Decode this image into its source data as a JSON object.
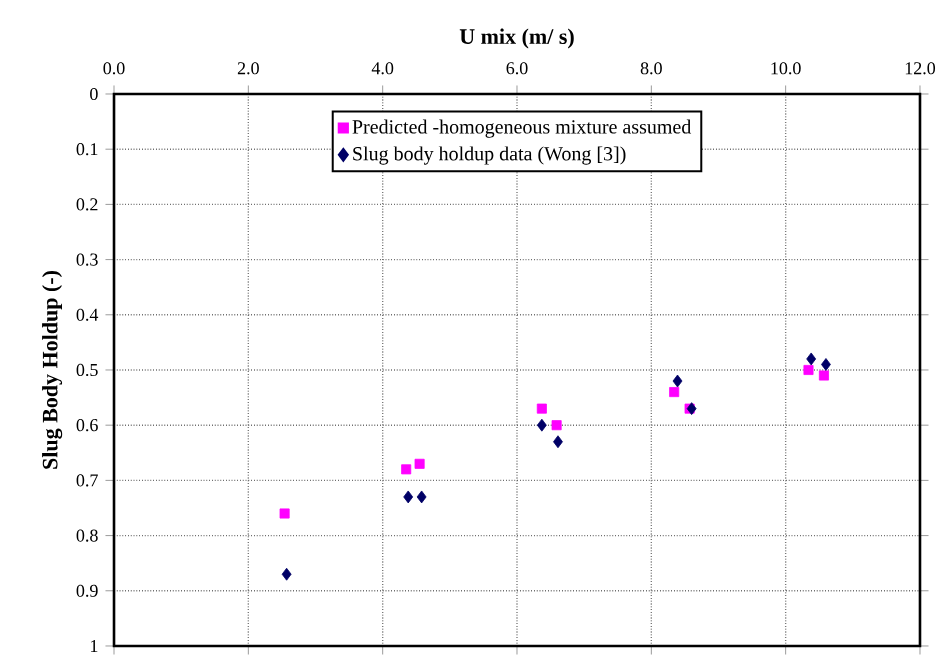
{
  "chart_data": {
    "type": "scatter",
    "xlabel": "U mix (m/ s)",
    "ylabel": "Slug Body Holdup (-)",
    "xlim": [
      0,
      12
    ],
    "ylim": [
      1,
      0
    ],
    "xticks": [
      {
        "value": 0,
        "label": "0.0"
      },
      {
        "value": 2,
        "label": "2.0"
      },
      {
        "value": 4,
        "label": "4.0"
      },
      {
        "value": 6,
        "label": "6.0"
      },
      {
        "value": 8,
        "label": "8.0"
      },
      {
        "value": 10,
        "label": "10.0"
      },
      {
        "value": 12,
        "label": "12.0"
      }
    ],
    "yticks": [
      0,
      0.1,
      0.2,
      0.3,
      0.4,
      0.5,
      0.6,
      0.7,
      0.8,
      0.9,
      1
    ],
    "grid": true,
    "legend": "top",
    "series": [
      {
        "name": "Predicted -homogeneous mixture assumed",
        "color": "#ff00ff",
        "marker": "square",
        "x": [
          2.54,
          4.35,
          4.55,
          6.37,
          6.59,
          8.34,
          8.57,
          10.34,
          10.57
        ],
        "values": [
          0.76,
          0.68,
          0.67,
          0.57,
          0.6,
          0.54,
          0.57,
          0.5,
          0.51
        ]
      },
      {
        "name": "Slug body holdup data  (Wong [3])",
        "color": "#000066",
        "marker": "diamond",
        "x": [
          2.57,
          4.38,
          4.58,
          6.37,
          6.61,
          8.39,
          8.6,
          10.38,
          10.6
        ],
        "values": [
          0.87,
          0.73,
          0.73,
          0.6,
          0.63,
          0.52,
          0.57,
          0.48,
          0.49
        ]
      }
    ]
  }
}
